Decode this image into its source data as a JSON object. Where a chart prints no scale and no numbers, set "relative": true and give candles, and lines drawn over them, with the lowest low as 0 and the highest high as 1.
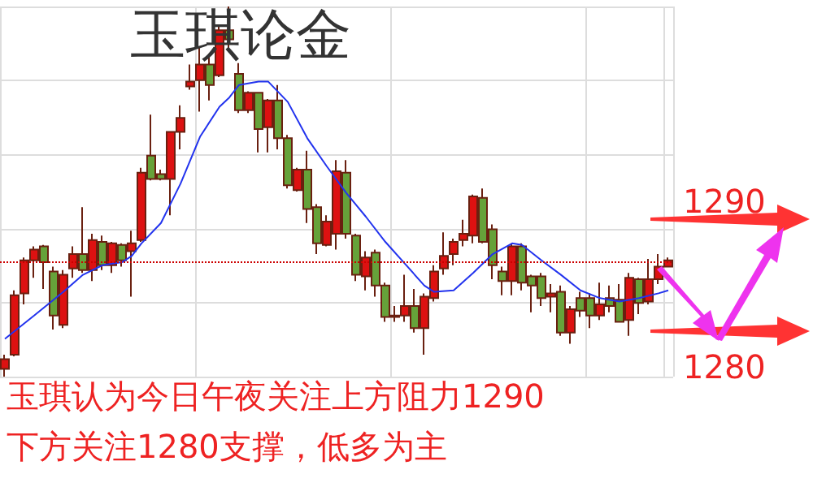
{
  "chart_data": {
    "type": "candlestick",
    "title": "玉琪论金",
    "relative": true,
    "grid": true,
    "marker": "none",
    "colors": [
      "#dd1111",
      "#dd1111",
      "#dd1111",
      "#dd1111",
      "#66a23a",
      "#66a23a",
      "#dd1111",
      "#dd1111",
      "#66a23a",
      "#dd1111",
      "#66a23a",
      "#dd1111",
      "#66a23a",
      "#dd1111",
      "#dd1111",
      "#66a23a",
      "#66a23a",
      "#dd1111",
      "#dd1111",
      "#dd1111",
      "#dd1111",
      "#66a23a",
      "#dd1111",
      "#66a23a",
      "#66a23a",
      "#dd1111",
      "#66a23a",
      "#dd1111",
      "#66a23a",
      "#66a23a",
      "#dd1111",
      "#66a23a",
      "#66a23a",
      "#dd1111",
      "#dd1111",
      "#66a23a",
      "#66a23a",
      "#dd1111",
      "#66a23a",
      "#66a23a",
      "#66a23a",
      "#dd1111",
      "#66a23a",
      "#dd1111",
      "#dd1111",
      "#dd1111",
      "#dd1111",
      "#dd1111",
      "#dd1111",
      "#66a23a",
      "#66a23a",
      "#66a23a",
      "#dd1111",
      "#66a23a",
      "#66a23a",
      "#66a23a",
      "#dd1111",
      "#66a23a",
      "#dd1111",
      "#66a23a",
      "#66a23a",
      "#dd1111",
      "#66a23a",
      "#66a23a",
      "#dd1111",
      "#66a23a",
      "#dd1111",
      "#dd1111",
      "#dd1111"
    ],
    "categories": [
      null,
      null,
      null,
      null,
      null,
      null,
      null,
      null,
      null,
      null,
      null,
      null,
      null,
      null,
      null,
      null,
      null,
      null,
      null,
      null,
      null,
      null,
      null,
      null,
      null,
      null,
      null,
      null,
      null,
      null,
      null,
      null,
      null,
      null,
      null,
      null,
      null,
      null,
      null,
      null,
      null,
      null,
      null,
      null,
      null,
      null,
      null,
      null,
      null,
      null,
      null,
      null,
      null,
      null,
      null,
      null,
      null,
      null,
      null,
      null,
      null,
      null,
      null,
      null,
      null,
      null,
      null,
      null,
      null
    ],
    "ohlc": [
      [
        0.021,
        0.059,
        0,
        0.047
      ],
      [
        0.059,
        0.233,
        0.055,
        0.22
      ],
      [
        0.225,
        0.322,
        0.195,
        0.314
      ],
      [
        0.314,
        0.352,
        0.267,
        0.343
      ],
      [
        0.352,
        0.356,
        0.237,
        0.309
      ],
      [
        0.284,
        0.297,
        0.127,
        0.165
      ],
      [
        0.14,
        0.288,
        0.131,
        0.275
      ],
      [
        0.292,
        0.352,
        0.267,
        0.331
      ],
      [
        0.331,
        0.458,
        0.28,
        0.288
      ],
      [
        0.288,
        0.386,
        0.258,
        0.369
      ],
      [
        0.364,
        0.381,
        0.288,
        0.301
      ],
      [
        0.301,
        0.364,
        0.28,
        0.36
      ],
      [
        0.356,
        0.36,
        0.297,
        0.314
      ],
      [
        0.339,
        0.394,
        0.216,
        0.36
      ],
      [
        0.369,
        0.564,
        0.364,
        0.551
      ],
      [
        0.597,
        0.708,
        0.53,
        0.534
      ],
      [
        0.547,
        0.559,
        0.53,
        0.534
      ],
      [
        0.534,
        0.661,
        0.436,
        0.661
      ],
      [
        0.661,
        0.733,
        0.614,
        0.699
      ],
      [
        0.784,
        0.843,
        0.775,
        0.797
      ],
      [
        0.801,
        0.89,
        0.716,
        0.843
      ],
      [
        0.843,
        0.873,
        0.746,
        0.788
      ],
      [
        0.814,
        0.945,
        0.809,
        0.936
      ],
      [
        0.936,
        1,
        0.881,
        0.911
      ],
      [
        0.818,
        0.847,
        0.712,
        0.72
      ],
      [
        0.72,
        0.771,
        0.712,
        0.767
      ],
      [
        0.767,
        0.767,
        0.606,
        0.669
      ],
      [
        0.674,
        0.75,
        0.606,
        0.746
      ],
      [
        0.746,
        0.788,
        0.614,
        0.644
      ],
      [
        0.644,
        0.653,
        0.508,
        0.517
      ],
      [
        0.504,
        0.564,
        0.5,
        0.559
      ],
      [
        0.559,
        0.61,
        0.415,
        0.453
      ],
      [
        0.458,
        0.466,
        0.331,
        0.36
      ],
      [
        0.356,
        0.436,
        0.352,
        0.419
      ],
      [
        0.386,
        0.585,
        0.343,
        0.555
      ],
      [
        0.551,
        0.585,
        0.373,
        0.386
      ],
      [
        0.381,
        0.386,
        0.258,
        0.275
      ],
      [
        0.271,
        0.339,
        0.233,
        0.322
      ],
      [
        0.335,
        0.343,
        0.216,
        0.246
      ],
      [
        0.246,
        0.254,
        0.148,
        0.161
      ],
      [
        0.165,
        0.191,
        0.148,
        0.161
      ],
      [
        0.165,
        0.275,
        0.148,
        0.191
      ],
      [
        0.191,
        0.237,
        0.119,
        0.131
      ],
      [
        0.131,
        0.225,
        0.059,
        0.216
      ],
      [
        0.212,
        0.301,
        0.203,
        0.284
      ],
      [
        0.292,
        0.39,
        0.275,
        0.326
      ],
      [
        0.331,
        0.373,
        0.301,
        0.364
      ],
      [
        0.369,
        0.424,
        0.352,
        0.386
      ],
      [
        0.381,
        0.492,
        0.36,
        0.487
      ],
      [
        0.483,
        0.508,
        0.36,
        0.364
      ],
      [
        0.398,
        0.411,
        0.263,
        0.301
      ],
      [
        0.284,
        0.297,
        0.22,
        0.258
      ],
      [
        0.258,
        0.36,
        0.22,
        0.352
      ],
      [
        0.352,
        0.36,
        0.233,
        0.254
      ],
      [
        0.271,
        0.275,
        0.174,
        0.246
      ],
      [
        0.271,
        0.28,
        0.191,
        0.212
      ],
      [
        0.216,
        0.25,
        0.174,
        0.225
      ],
      [
        0.229,
        0.246,
        0.11,
        0.119
      ],
      [
        0.119,
        0.191,
        0.089,
        0.182
      ],
      [
        0.212,
        0.229,
        0.161,
        0.178
      ],
      [
        0.212,
        0.225,
        0.131,
        0.165
      ],
      [
        0.165,
        0.254,
        0.153,
        0.195
      ],
      [
        0.212,
        0.246,
        0.174,
        0.191
      ],
      [
        0.208,
        0.25,
        0.148,
        0.148
      ],
      [
        0.153,
        0.28,
        0.11,
        0.267
      ],
      [
        0.263,
        0.267,
        0.169,
        0.199
      ],
      [
        0.203,
        0.318,
        0.195,
        0.263
      ],
      [
        0.263,
        0.331,
        0.25,
        0.297
      ],
      [
        0.297,
        0.322,
        0.297,
        0.314
      ]
    ],
    "series": [
      {
        "type": "line",
        "color": "#2233ee",
        "values": [
          0.102,
          null,
          null,
          0.165,
          null,
          null,
          0.229,
          null,
          0.275,
          null,
          0.301,
          null,
          0.309,
          0.326,
          0.36,
          null,
          0.415,
          null,
          0.521,
          null,
          0.648,
          null,
          0.729,
          0.754,
          0.788,
          null,
          0.797,
          0.797,
          null,
          0.742,
          null,
          0.644,
          null,
          0.568,
          null,
          0.496,
          null,
          0.432,
          null,
          0.364,
          null,
          0.305,
          null,
          0.246,
          0.229,
          null,
          0.233,
          null,
          0.28,
          null,
          0.331,
          null,
          0.36,
          0.356,
          null,
          0.314,
          null,
          0.275,
          null,
          0.233,
          null,
          0.212,
          null,
          0.203,
          null,
          0.212,
          null,
          0.225,
          0.233
        ]
      }
    ],
    "ref_lines": [
      {
        "axis": "y",
        "value": 0.314,
        "color": "#cc0000",
        "line_style": "dotted"
      }
    ],
    "annotations": [
      "玉琪认为今日午夜关注上方阻力1290",
      "下方关注1280支撑，低多为主",
      "1290",
      "1280"
    ]
  }
}
